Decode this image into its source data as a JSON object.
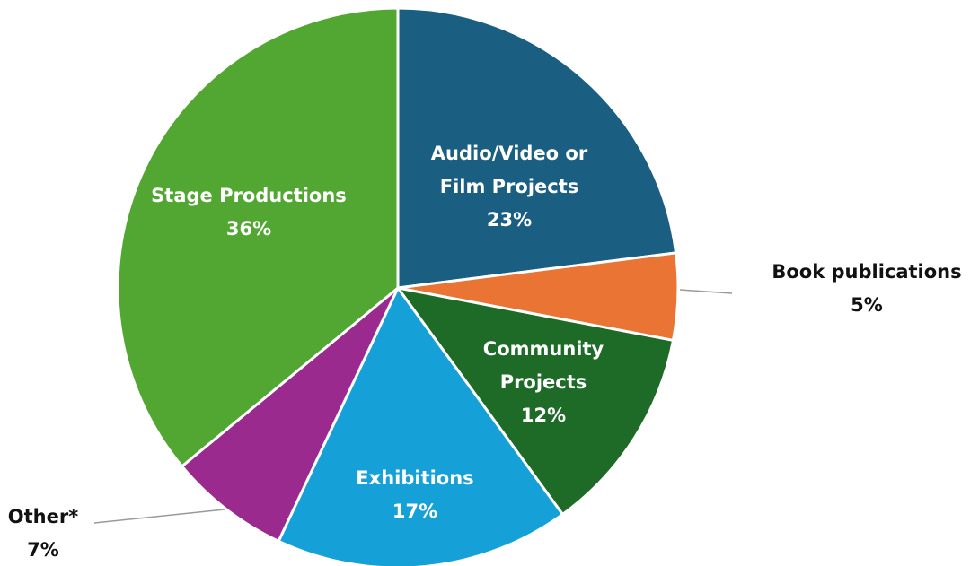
{
  "chart_data": {
    "type": "pie",
    "categories": [
      "Audio/Video or Film Projects",
      "Book publications",
      "Community Projects",
      "Exhibitions",
      "Other*",
      "Stage Productions"
    ],
    "values": [
      23,
      5,
      12,
      17,
      7,
      36
    ],
    "value_labels": [
      "23%",
      "5%",
      "12%",
      "17%",
      "7%",
      "36%"
    ],
    "colors": [
      "#1a5e82",
      "#e97434",
      "#1e6b28",
      "#16a0d8",
      "#9b2a8e",
      "#52a732"
    ]
  }
}
